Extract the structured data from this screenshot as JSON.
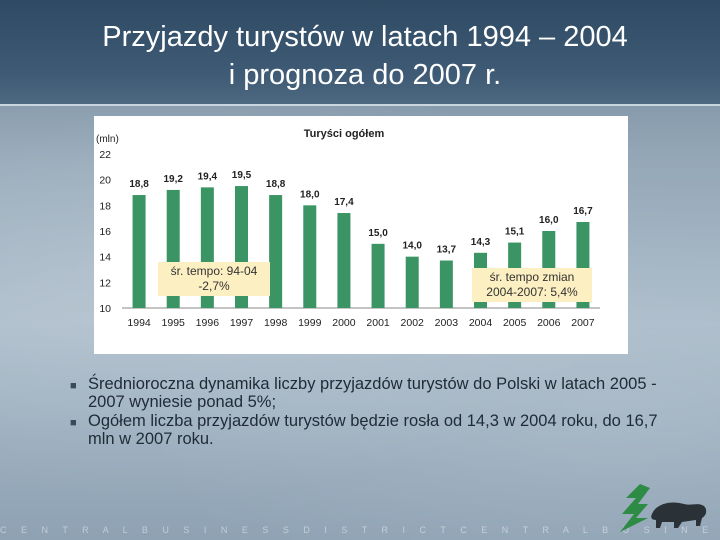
{
  "slide": {
    "title_line1": "Przyjazdy turystów w latach 1994 – 2004",
    "title_line2": "i prognoza do 2007 r."
  },
  "chart_data": {
    "type": "bar",
    "title": "Turyści ogółem",
    "ylabel": "(mln)",
    "categories": [
      "1994",
      "1995",
      "1996",
      "1997",
      "1998",
      "1999",
      "2000",
      "2001",
      "2002",
      "2003",
      "2004",
      "2005",
      "2006",
      "2007"
    ],
    "values": [
      18.8,
      19.2,
      19.4,
      19.5,
      18.8,
      18.0,
      17.4,
      15.0,
      14.0,
      13.7,
      14.3,
      15.1,
      16.0,
      16.7
    ],
    "data_labels": [
      "18,8",
      "19,2",
      "19,4",
      "19,5",
      "18,8",
      "18,0",
      "17,4",
      "15,0",
      "14,0",
      "13,7",
      "14,3",
      "15,1",
      "16,0",
      "16,7"
    ],
    "ylim": [
      10,
      22
    ],
    "yticks": [
      "10",
      "12",
      "14",
      "16",
      "18",
      "20",
      "22"
    ],
    "grid": false,
    "bar_color": "#3a9463",
    "annotations": [
      {
        "line1": "śr. tempo: 94-04",
        "line2": "-2,7%"
      },
      {
        "line1": "śr. tempo zmian",
        "line2": "2004-2007: 5,4%"
      }
    ]
  },
  "bullets": [
    "Średnioroczna dynamika liczby przyjazdów turystów do Polski w latach 2005 - 2007 wyniesie ponad 5%;",
    "Ogółem liczba przyjazdów turystów będzie rosła od 14,3 w 2004 roku, do 16,7 mln w 2007 roku."
  ],
  "footer": {
    "text": "C E N T R A L B U S I N E S S D I S T R I C T C E N T R A L B U S I N E S S D I S T R I C T C E N T R A L B U S I N E S S D I S T R I C T"
  }
}
